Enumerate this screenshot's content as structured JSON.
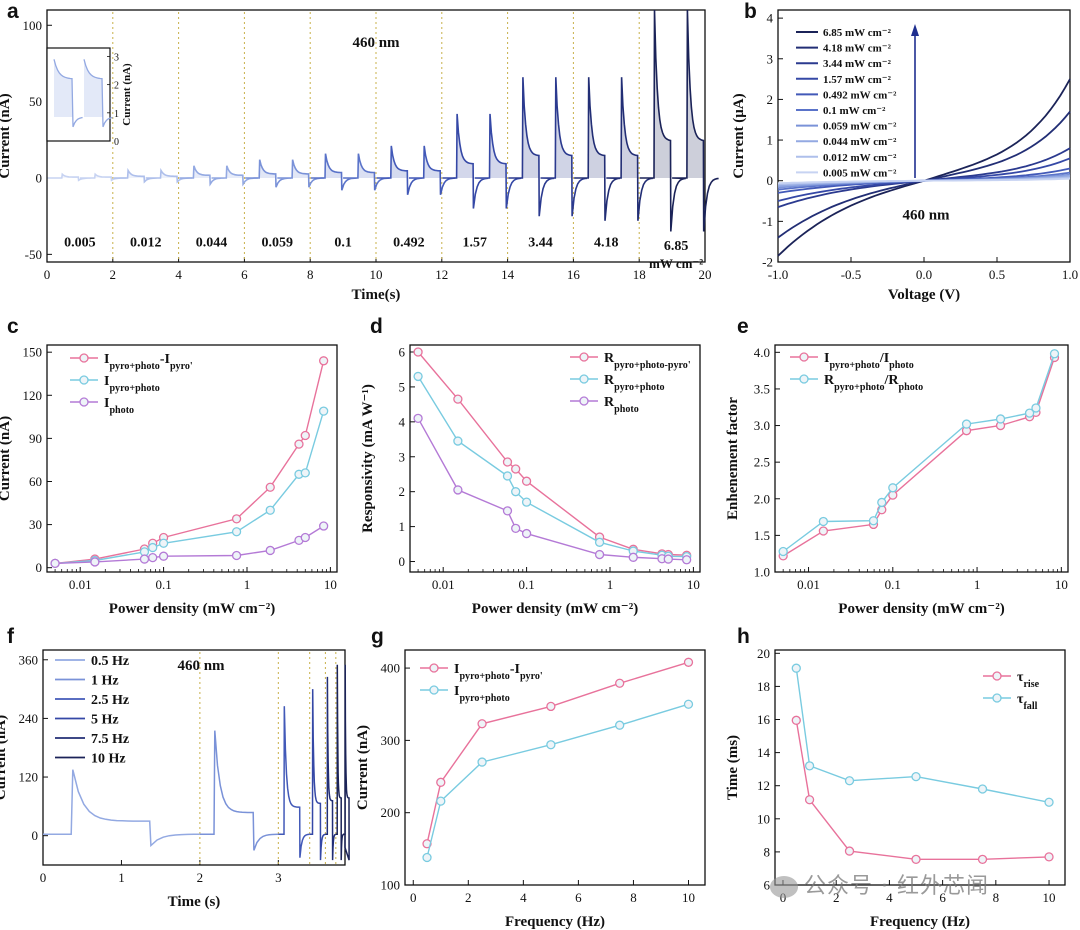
{
  "colors": {
    "grad": [
      "#c7d3f2",
      "#aebfeb",
      "#93a9e2",
      "#7a92d8",
      "#5a73c9",
      "#4259b8",
      "#3548a6",
      "#2b3a8f",
      "#222e75",
      "#1b2358"
    ],
    "pink": "#e8729b",
    "cyan": "#79cbe0",
    "purple": "#b47ad6",
    "darkblue": "#1f2f8f",
    "gridline": "#c8b04a"
  },
  "watermark": "公众号 · 红外芯闻",
  "chart_data": [
    {
      "id": "a",
      "letter": "a",
      "type": "line",
      "xlabel": "Time(s)",
      "ylabel": "Current (nA)",
      "xlim": [
        0,
        20
      ],
      "ylim": [
        -55,
        110
      ],
      "xticks": [
        0,
        2,
        4,
        6,
        8,
        10,
        12,
        14,
        16,
        18,
        20
      ],
      "yticks": [
        -50,
        0,
        50,
        100
      ],
      "annotation": "460 nm",
      "segments": [
        {
          "label": "0.005",
          "peak": 2.5,
          "trough": -1.5
        },
        {
          "label": "0.012",
          "peak": 5,
          "trough": -2.5
        },
        {
          "label": "0.044",
          "peak": 8,
          "trough": -4
        },
        {
          "label": "0.059",
          "peak": 12,
          "trough": -6
        },
        {
          "label": "0.1",
          "peak": 16,
          "trough": -8
        },
        {
          "label": "0.492",
          "peak": 21,
          "trough": -11
        },
        {
          "label": "1.57",
          "peak": 42,
          "trough": -20
        },
        {
          "label": "3.44",
          "peak": 66,
          "trough": -25
        },
        {
          "label": "4.18",
          "peak": 66,
          "trough": -28
        },
        {
          "label": "6.85",
          "peak": 110,
          "trough": -35
        }
      ],
      "last_label_unit": "mW cm⁻²",
      "inset": {
        "ylabel": "Current (nA)",
        "yticks": [
          0,
          1,
          2,
          3
        ]
      }
    },
    {
      "id": "b",
      "letter": "b",
      "type": "line",
      "xlabel": "Voltage (V)",
      "ylabel": "Current (μA)",
      "xlim": [
        -1.0,
        1.0
      ],
      "ylim": [
        -2.0,
        4.2
      ],
      "xticks": [
        -1.0,
        -0.5,
        0.0,
        0.5,
        1.0
      ],
      "yticks": [
        -2,
        -1,
        0,
        1,
        2,
        3,
        4
      ],
      "annotation": "460 nm",
      "series": [
        {
          "name": "6.85 mW cm⁻²",
          "pos": 2.5,
          "neg": -1.85
        },
        {
          "name": "4.18 mW cm⁻²",
          "pos": 1.7,
          "neg": -1.4
        },
        {
          "name": "3.44 mW cm⁻²",
          "pos": 0.8,
          "neg": -0.65
        },
        {
          "name": "1.57 mW cm⁻²",
          "pos": 0.55,
          "neg": -0.5
        },
        {
          "name": "0.492 mW cm⁻²",
          "pos": 0.3,
          "neg": -0.3
        },
        {
          "name": "0.1 mW cm⁻²",
          "pos": 0.2,
          "neg": -0.22
        },
        {
          "name": "0.059 mW cm⁻²",
          "pos": 0.15,
          "neg": -0.17
        },
        {
          "name": "0.044 mW cm⁻²",
          "pos": 0.12,
          "neg": -0.13
        },
        {
          "name": "0.012 mW cm⁻²",
          "pos": 0.08,
          "neg": -0.09
        },
        {
          "name": "0.005 mW cm⁻²",
          "pos": 0.05,
          "neg": -0.06
        }
      ]
    },
    {
      "id": "c",
      "letter": "c",
      "type": "line",
      "xscale": "log",
      "xlabel": "Power density (mW cm⁻²)",
      "ylabel": "Current (nA)",
      "xlim": [
        0.004,
        12
      ],
      "ylim": [
        -3,
        155
      ],
      "xticks": [
        0.01,
        0.1,
        1,
        10
      ],
      "xticklabels": [
        "0.01",
        "0.1",
        "1",
        "10"
      ],
      "yticks": [
        0,
        30,
        60,
        90,
        120,
        150
      ],
      "x": [
        0.005,
        0.015,
        0.059,
        0.074,
        0.1,
        0.75,
        1.9,
        4.2,
        5.0,
        8.3
      ],
      "series": [
        {
          "name": "I",
          "sub": "pyro+photo",
          "mid": "-I",
          "sub2": "pyro'",
          "color": "pink",
          "values": [
            3,
            6,
            13,
            17,
            21,
            34,
            56,
            86,
            92,
            144
          ]
        },
        {
          "name": "I",
          "sub": "pyro+photo",
          "color": "cyan",
          "values": [
            3,
            5,
            11,
            14,
            17,
            25,
            40,
            65,
            66,
            109
          ]
        },
        {
          "name": "I",
          "sub": "photo",
          "color": "purple",
          "values": [
            3,
            4,
            6,
            7,
            8,
            8.5,
            12,
            19,
            21,
            29
          ]
        }
      ]
    },
    {
      "id": "d",
      "letter": "d",
      "type": "line",
      "xscale": "log",
      "xlabel": "Power density (mW cm⁻²)",
      "ylabel": "Responsivity (mA W⁻¹)",
      "xlim": [
        0.004,
        12
      ],
      "ylim": [
        -0.3,
        6.2
      ],
      "xticks": [
        0.01,
        0.1,
        1,
        10
      ],
      "xticklabels": [
        "0.01",
        "0.1",
        "1",
        "10"
      ],
      "yticks": [
        0,
        1,
        2,
        3,
        4,
        5,
        6
      ],
      "x": [
        0.005,
        0.015,
        0.059,
        0.074,
        0.1,
        0.75,
        1.9,
        4.2,
        5.0,
        8.3
      ],
      "series": [
        {
          "name": "R",
          "sub": "pyro+photo-pyro'",
          "color": "pink",
          "values": [
            6.0,
            4.65,
            2.85,
            2.65,
            2.3,
            0.7,
            0.35,
            0.22,
            0.2,
            0.18
          ]
        },
        {
          "name": "R",
          "sub": "pyro+photo",
          "color": "cyan",
          "values": [
            5.3,
            3.45,
            2.45,
            2.0,
            1.7,
            0.55,
            0.3,
            0.18,
            0.15,
            0.14
          ]
        },
        {
          "name": "R",
          "sub": "photo",
          "color": "purple",
          "values": [
            4.1,
            2.05,
            1.45,
            0.95,
            0.8,
            0.2,
            0.12,
            0.08,
            0.07,
            0.05
          ]
        }
      ]
    },
    {
      "id": "e",
      "letter": "e",
      "type": "line",
      "xscale": "log",
      "xlabel": "Power density (mW cm⁻²)",
      "ylabel": "Enhenement factor",
      "xlim": [
        0.004,
        12
      ],
      "ylim": [
        1.0,
        4.1
      ],
      "xticks": [
        0.01,
        0.1,
        1,
        10
      ],
      "xticklabels": [
        "0.01",
        "0.1",
        "1",
        "10"
      ],
      "yticks": [
        1.0,
        1.5,
        2.0,
        2.5,
        3.0,
        3.5,
        4.0
      ],
      "x": [
        0.005,
        0.015,
        0.059,
        0.074,
        0.1,
        0.75,
        1.9,
        4.2,
        5.0,
        8.3
      ],
      "series": [
        {
          "name": "I",
          "sub": "pyro+photo",
          "mid": "/I",
          "sub2": "photo",
          "color": "pink",
          "values": [
            1.22,
            1.56,
            1.65,
            1.85,
            2.05,
            2.93,
            3.0,
            3.12,
            3.18,
            3.93
          ]
        },
        {
          "name": "R",
          "sub": "pyro+photo",
          "mid": "/R",
          "sub2": "photo",
          "color": "cyan",
          "values": [
            1.28,
            1.69,
            1.7,
            1.95,
            2.15,
            3.02,
            3.09,
            3.17,
            3.24,
            3.98
          ]
        }
      ]
    },
    {
      "id": "f",
      "letter": "f",
      "type": "line",
      "xlabel": "Time (s)",
      "ylabel": "Current (nA)",
      "xlim": [
        0,
        3.85
      ],
      "ylim": [
        -60,
        380
      ],
      "xticks": [
        0,
        1,
        2,
        3
      ],
      "yticks": [
        0,
        120,
        240,
        360
      ],
      "annotation": "460 nm",
      "series": [
        {
          "name": "0.5 Hz",
          "color_index": 2
        },
        {
          "name": "1 Hz",
          "color_index": 3
        },
        {
          "name": "2.5 Hz",
          "color_index": 5
        },
        {
          "name": "5 Hz",
          "color_index": 6
        },
        {
          "name": "7.5 Hz",
          "color_index": 8
        },
        {
          "name": "10 Hz",
          "color_index": 9
        }
      ],
      "segments": [
        {
          "start": 0,
          "end": 2,
          "freq": 0.5,
          "peak": 135,
          "trough": -20
        },
        {
          "start": 2,
          "end": 3,
          "freq": 1,
          "peak": 215,
          "trough": -30
        },
        {
          "start": 3,
          "end": 3.4,
          "freq": 2.5,
          "peak": 265,
          "trough": -45
        },
        {
          "start": 3.4,
          "end": 3.6,
          "freq": 5,
          "peak": 300,
          "trough": -50
        },
        {
          "start": 3.6,
          "end": 3.733,
          "freq": 7.5,
          "peak": 325,
          "trough": -50
        },
        {
          "start": 3.733,
          "end": 3.85,
          "freq": 10,
          "peak": 350,
          "trough": -50
        }
      ]
    },
    {
      "id": "g",
      "letter": "g",
      "type": "line",
      "xlabel": "Frequency (Hz)",
      "ylabel": "Current (nA)",
      "xlim": [
        -0.3,
        10.6
      ],
      "ylim": [
        100,
        425
      ],
      "xticks": [
        0,
        2,
        4,
        6,
        8,
        10
      ],
      "yticks": [
        100,
        200,
        300,
        400
      ],
      "x": [
        0.5,
        1,
        2.5,
        5,
        7.5,
        10
      ],
      "series": [
        {
          "name": "I",
          "sub": "pyro+photo",
          "mid": "-I",
          "sub2": "pyro'",
          "color": "pink",
          "values": [
            157,
            242,
            323,
            347,
            379,
            408
          ]
        },
        {
          "name": "I",
          "sub": "pyro+photo",
          "color": "cyan",
          "values": [
            138,
            216,
            270,
            294,
            321,
            350
          ]
        }
      ]
    },
    {
      "id": "h",
      "letter": "h",
      "type": "line",
      "xlabel": "Frequency (Hz)",
      "ylabel": "Time (ms)",
      "xlim": [
        -0.3,
        10.6
      ],
      "ylim": [
        6,
        20.2
      ],
      "xticks": [
        0,
        2,
        4,
        6,
        8,
        10
      ],
      "yticks": [
        6,
        8,
        10,
        12,
        14,
        16,
        18,
        20
      ],
      "x": [
        0.5,
        1,
        2.5,
        5,
        7.5,
        10
      ],
      "series": [
        {
          "name": "τ",
          "sub": "rise",
          "color": "pink",
          "values": [
            15.95,
            11.15,
            8.05,
            7.55,
            7.55,
            7.7
          ]
        },
        {
          "name": "τ",
          "sub": "fall",
          "color": "cyan",
          "values": [
            19.1,
            13.2,
            12.3,
            12.55,
            11.8,
            11.0
          ]
        }
      ]
    }
  ]
}
